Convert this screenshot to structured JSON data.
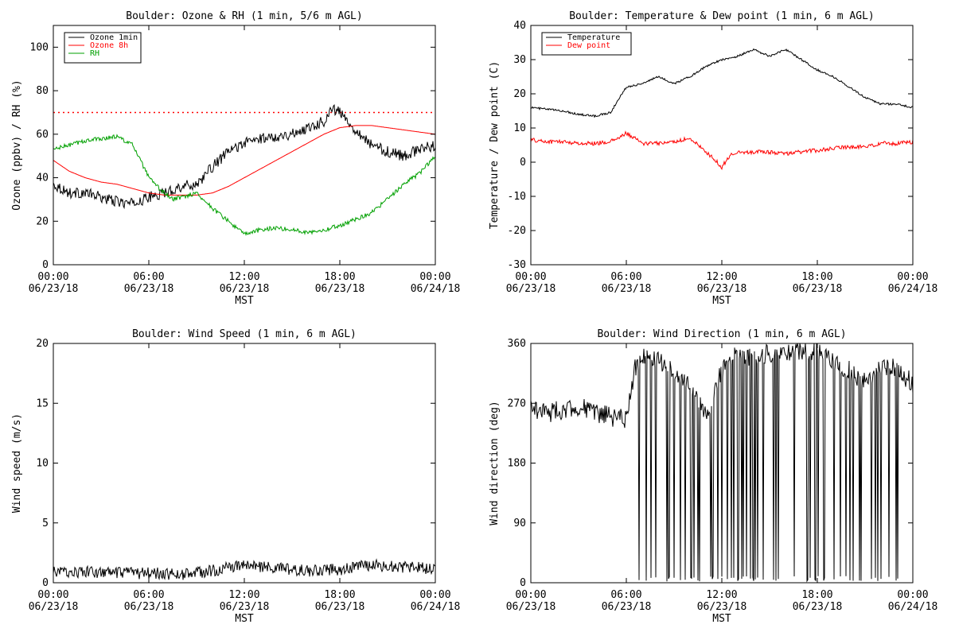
{
  "chart_data": [
    {
      "type": "line",
      "title": "Boulder: Ozone & RH (1 min, 5/6 m AGL)",
      "xlabel": "MST",
      "ylabel": "Ozone (ppbv) / RH (%)",
      "xlim": [
        "2018-06-23 00:00",
        "2018-06-24 00:00"
      ],
      "ylim": [
        0,
        110
      ],
      "x_ticks": [
        [
          "00:00",
          "06/23/18"
        ],
        [
          "06:00",
          "06/23/18"
        ],
        [
          "12:00",
          "06/23/18"
        ],
        [
          "18:00",
          "06/23/18"
        ],
        [
          "00:00",
          "06/24/18"
        ]
      ],
      "y_ticks": [
        0,
        20,
        40,
        60,
        80,
        100
      ],
      "legend_position": "top-left",
      "reference_lines": [
        {
          "y": 70,
          "color": "#ff0000",
          "style": "dotted"
        }
      ],
      "series": [
        {
          "name": "Ozone 1min",
          "color": "#000000",
          "noise": 2.5,
          "x": [
            0,
            1,
            2,
            3,
            4,
            5,
            6,
            7,
            8,
            9,
            10,
            11,
            12,
            13,
            14,
            15,
            16,
            17,
            17.5,
            18,
            18.5,
            19,
            20,
            21,
            22,
            23,
            24
          ],
          "y": [
            37,
            33,
            33,
            31,
            29,
            28,
            31,
            33,
            36,
            37,
            45,
            52,
            56,
            58,
            59,
            60,
            63,
            66,
            72,
            70,
            66,
            62,
            55,
            52,
            50,
            53,
            55
          ]
        },
        {
          "name": "Ozone 8h",
          "color": "#ff0000",
          "noise": 0,
          "x": [
            0,
            1,
            2,
            3,
            4,
            5,
            6,
            7,
            8,
            9,
            10,
            11,
            12,
            13,
            14,
            15,
            16,
            17,
            18,
            19,
            20,
            21,
            22,
            23,
            24
          ],
          "y": [
            48,
            43,
            40,
            38,
            37,
            35,
            33,
            32,
            32,
            32,
            33,
            36,
            40,
            44,
            48,
            52,
            56,
            60,
            63,
            64,
            64,
            63,
            62,
            61,
            60
          ]
        },
        {
          "name": "RH",
          "color": "#00a000",
          "noise": 1.0,
          "x": [
            0,
            1,
            2,
            3,
            4,
            5,
            6,
            6.5,
            7,
            7.5,
            8,
            9,
            10,
            11,
            12,
            13,
            14,
            15,
            16,
            17,
            18,
            19,
            20,
            21,
            22,
            23,
            23.5,
            24
          ],
          "y": [
            53,
            55,
            57,
            58,
            59,
            55,
            40,
            36,
            33,
            30,
            31,
            33,
            26,
            20,
            14,
            16,
            17,
            16,
            15,
            16,
            18,
            21,
            24,
            30,
            37,
            42,
            46,
            50
          ]
        }
      ]
    },
    {
      "type": "line",
      "title": "Boulder: Temperature & Dew point (1 min, 6 m AGL)",
      "xlabel": "MST",
      "ylabel": "Temperature / Dew point (C)",
      "xlim": [
        "2018-06-23 00:00",
        "2018-06-24 00:00"
      ],
      "ylim": [
        -30,
        40
      ],
      "x_ticks": [
        [
          "00:00",
          "06/23/18"
        ],
        [
          "06:00",
          "06/23/18"
        ],
        [
          "12:00",
          "06/23/18"
        ],
        [
          "18:00",
          "06/23/18"
        ],
        [
          "00:00",
          "06/24/18"
        ]
      ],
      "y_ticks": [
        -30,
        -20,
        -10,
        0,
        10,
        20,
        30,
        40
      ],
      "legend_position": "top-left",
      "series": [
        {
          "name": "Temperature",
          "color": "#000000",
          "noise": 0.3,
          "x": [
            0,
            1,
            2,
            3,
            4,
            5,
            6,
            7,
            8,
            9,
            10,
            11,
            12,
            13,
            14,
            15,
            16,
            17,
            18,
            19,
            20,
            21,
            22,
            23,
            24
          ],
          "y": [
            16,
            15.5,
            15,
            14,
            13.5,
            14.5,
            22,
            23,
            25,
            23,
            25,
            28,
            30,
            31,
            33,
            31,
            33,
            30,
            27,
            25,
            22,
            19,
            17,
            17,
            16
          ]
        },
        {
          "name": "Dew point",
          "color": "#ff0000",
          "noise": 0.6,
          "x": [
            0,
            1,
            2,
            3,
            4,
            5,
            5.5,
            6,
            6.5,
            7,
            8,
            9,
            10,
            11,
            11.5,
            12,
            12.5,
            13,
            14,
            15,
            16,
            17,
            18,
            19,
            20,
            21,
            22,
            23,
            24
          ],
          "y": [
            6.5,
            6,
            6,
            5.5,
            5.5,
            6,
            7,
            8.5,
            7,
            5.5,
            5.5,
            6,
            7,
            3,
            1,
            -1.5,
            2,
            3,
            3,
            3,
            2.5,
            3,
            3.5,
            4,
            4.5,
            4.5,
            5.5,
            5.5,
            6
          ]
        }
      ]
    },
    {
      "type": "line",
      "title": "Boulder: Wind Speed (1 min, 6 m AGL)",
      "xlabel": "MST",
      "ylabel": "Wind speed (m/s)",
      "xlim": [
        "2018-06-23 00:00",
        "2018-06-24 00:00"
      ],
      "ylim": [
        0,
        20
      ],
      "x_ticks": [
        [
          "00:00",
          "06/23/18"
        ],
        [
          "06:00",
          "06/23/18"
        ],
        [
          "12:00",
          "06/23/18"
        ],
        [
          "18:00",
          "06/23/18"
        ],
        [
          "00:00",
          "06/24/18"
        ]
      ],
      "y_ticks": [
        0,
        5,
        10,
        15,
        20
      ],
      "series": [
        {
          "name": "",
          "color": "#000000",
          "noise": 0.5,
          "x": [
            0,
            2,
            4,
            6,
            8,
            10,
            12,
            14,
            16,
            18,
            20,
            22,
            24
          ],
          "y": [
            0.9,
            0.9,
            0.8,
            0.8,
            0.7,
            1.0,
            1.5,
            1.2,
            1.0,
            1.1,
            1.5,
            1.3,
            1.2
          ]
        }
      ]
    },
    {
      "type": "line",
      "title": "Boulder: Wind Direction (1 min, 6 m AGL)",
      "xlabel": "MST",
      "ylabel": "Wind direction (deg)",
      "xlim": [
        "2018-06-23 00:00",
        "2018-06-24 00:00"
      ],
      "ylim": [
        0,
        360
      ],
      "x_ticks": [
        [
          "00:00",
          "06/23/18"
        ],
        [
          "06:00",
          "06/23/18"
        ],
        [
          "12:00",
          "06/23/18"
        ],
        [
          "18:00",
          "06/23/18"
        ],
        [
          "00:00",
          "06/24/18"
        ]
      ],
      "y_ticks": [
        0,
        90,
        180,
        270,
        360
      ],
      "series": [
        {
          "name": "",
          "color": "#000000",
          "noise": 15,
          "wrap": true,
          "x": [
            0,
            1,
            2,
            3,
            4,
            5,
            6,
            6.5,
            7,
            8,
            9,
            10,
            11,
            12,
            13,
            14,
            15,
            16,
            17,
            18,
            19,
            20,
            21,
            22,
            23,
            24
          ],
          "y": [
            265,
            255,
            260,
            265,
            255,
            250,
            245,
            320,
            345,
            335,
            320,
            300,
            250,
            320,
            345,
            340,
            345,
            345,
            350,
            350,
            330,
            320,
            300,
            330,
            320,
            300
          ]
        }
      ]
    }
  ]
}
